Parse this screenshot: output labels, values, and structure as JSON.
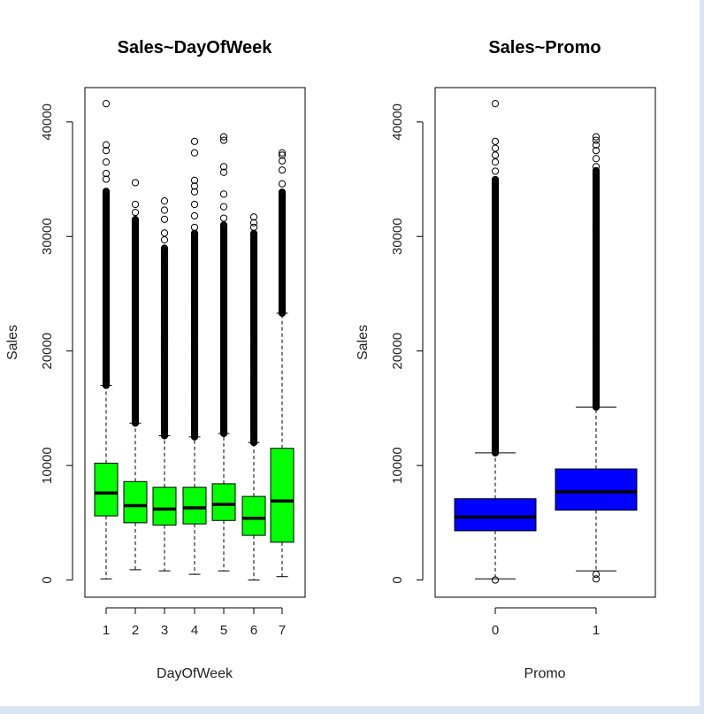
{
  "colors": {
    "page_border": "#dbe5f1",
    "panel_bg": "#ffffff",
    "ink": "#000000"
  },
  "chart_data": [
    {
      "type": "boxplot",
      "title": "Sales~DayOfWeek",
      "xlabel": "DayOfWeek",
      "ylabel": "Sales",
      "ylim": [
        -1500,
        43000
      ],
      "yticks": [
        0,
        10000,
        20000,
        30000,
        40000
      ],
      "fill_color": "#00ff00",
      "categories": [
        "1",
        "2",
        "3",
        "4",
        "5",
        "6",
        "7"
      ],
      "boxes": [
        {
          "category": "1",
          "min": 100,
          "q1": 5600,
          "median": 7600,
          "q3": 10200,
          "max": 17000,
          "outliers": [
            35000,
            35500,
            36500,
            37500,
            38000,
            41600
          ],
          "outlier_band": [
            17000,
            34000
          ]
        },
        {
          "category": "2",
          "min": 900,
          "q1": 5000,
          "median": 6500,
          "q3": 8600,
          "max": 13700,
          "outliers": [
            32100,
            32800,
            34700
          ],
          "outlier_band": [
            13700,
            31500
          ]
        },
        {
          "category": "3",
          "min": 800,
          "q1": 4800,
          "median": 6200,
          "q3": 8100,
          "max": 12600,
          "outliers": [
            29700,
            30300,
            31500,
            32300,
            33100
          ],
          "outlier_band": [
            12600,
            29000
          ]
        },
        {
          "category": "4",
          "min": 500,
          "q1": 4900,
          "median": 6300,
          "q3": 8100,
          "max": 12500,
          "outliers": [
            30800,
            31800,
            32800,
            33900,
            34400,
            34900,
            37300,
            38300
          ],
          "outlier_band": [
            12500,
            30300
          ]
        },
        {
          "category": "5",
          "min": 800,
          "q1": 5200,
          "median": 6600,
          "q3": 8400,
          "max": 12800,
          "outliers": [
            31600,
            32600,
            33700,
            35600,
            36100,
            38400,
            38700
          ],
          "outlier_band": [
            12800,
            31000
          ]
        },
        {
          "category": "6",
          "min": 0,
          "q1": 3900,
          "median": 5400,
          "q3": 7300,
          "max": 12000,
          "outliers": [
            30800,
            31200,
            31700
          ],
          "outlier_band": [
            12000,
            30300
          ]
        },
        {
          "category": "7",
          "min": 300,
          "q1": 3300,
          "median": 6900,
          "q3": 11500,
          "max": 23300,
          "outliers": [
            34600,
            35800,
            36600,
            37100,
            37300
          ],
          "outlier_band": [
            23300,
            33900
          ]
        }
      ]
    },
    {
      "type": "boxplot",
      "title": "Sales~Promo",
      "xlabel": "Promo",
      "ylabel": "Sales",
      "ylim": [
        -1500,
        43000
      ],
      "yticks": [
        0,
        10000,
        20000,
        30000,
        40000
      ],
      "fill_color": "#0000ff",
      "categories": [
        "0",
        "1"
      ],
      "boxes": [
        {
          "category": "0",
          "min": 100,
          "q1": 4300,
          "median": 5500,
          "q3": 7100,
          "max": 11100,
          "outliers": [
            0,
            35700,
            36500,
            37100,
            37700,
            38300,
            41600
          ],
          "outlier_band": [
            11100,
            35000
          ]
        },
        {
          "category": "1",
          "min": 800,
          "q1": 6100,
          "median": 7700,
          "q3": 9700,
          "max": 15100,
          "outliers": [
            100,
            500,
            36100,
            36800,
            37500,
            38000,
            38400,
            38700
          ],
          "outlier_band": [
            15100,
            35800
          ]
        }
      ]
    }
  ]
}
